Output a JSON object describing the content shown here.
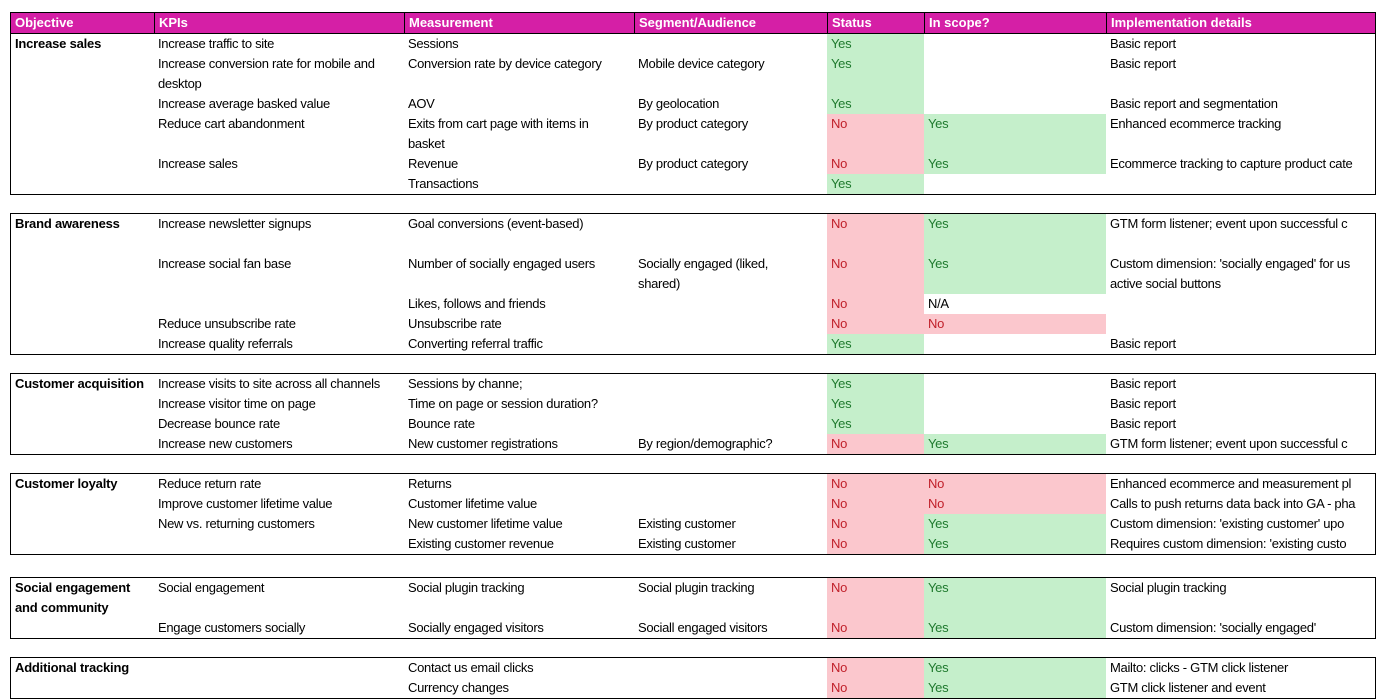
{
  "table": {
    "columns": [
      "Objective",
      "KPIs",
      "Measurement",
      "Segment/Audience",
      "Status",
      "In scope?",
      "Implementation details"
    ],
    "colors": {
      "header_bg": "#D51FA6",
      "header_text": "#FFFFFF",
      "yes_fill": "#C5EFCB",
      "yes_text": "#1F7A2E",
      "no_fill": "#FBC7CD",
      "no_text": "#C0202A",
      "border": "#000000"
    },
    "sections": [
      {
        "objective": "Increase sales",
        "rows": [
          {
            "kpi": "Increase traffic to site",
            "measurement": "Sessions",
            "segment": "",
            "status": "Yes",
            "in_scope": "",
            "implementation": "Basic report",
            "h": 1
          },
          {
            "kpi": "Increase conversion rate for mobile and\ndesktop",
            "measurement": "Conversion rate by device category",
            "segment": "Mobile device category",
            "status": "Yes",
            "in_scope": "",
            "implementation": "Basic report",
            "h": 2
          },
          {
            "kpi": "Increase average basked value",
            "measurement": "AOV",
            "segment": "By geolocation",
            "status": "Yes",
            "in_scope": "",
            "implementation": "Basic report and segmentation",
            "h": 1
          },
          {
            "kpi": "Reduce cart abandonment",
            "measurement": "Exits from cart page with items in\nbasket",
            "segment": "By product category",
            "status": "No",
            "in_scope": "Yes",
            "implementation": "Enhanced ecommerce tracking",
            "h": 2
          },
          {
            "kpi": "Increase sales",
            "measurement": "Revenue",
            "segment": "By product category",
            "status": "No",
            "in_scope": "Yes",
            "implementation": "Ecommerce tracking to capture product cate",
            "h": 1
          },
          {
            "kpi": "",
            "measurement": "Transactions",
            "segment": "",
            "status": "Yes",
            "in_scope": "",
            "implementation": "",
            "h": 1
          }
        ]
      },
      {
        "objective": "Brand awareness",
        "rows": [
          {
            "kpi": "Increase newsletter signups",
            "measurement": "Goal conversions (event-based)",
            "segment": "",
            "status": "No",
            "in_scope": "Yes",
            "implementation": "GTM form listener; event upon successful c",
            "h": 2
          },
          {
            "kpi": "Increase social fan base",
            "measurement": "Number of socially engaged users",
            "segment": "Socially engaged (liked,\nshared)",
            "status": "No",
            "in_scope": "Yes",
            "implementation": "Custom dimension: 'socially engaged' for us\nactive social buttons",
            "h": 2
          },
          {
            "kpi": "",
            "measurement": "Likes, follows and friends",
            "segment": "",
            "status": "No",
            "in_scope": "N/A",
            "implementation": "",
            "h": 1
          },
          {
            "kpi": "Reduce unsubscribe rate",
            "measurement": "Unsubscribe rate",
            "segment": "",
            "status": "No",
            "in_scope": "No",
            "implementation": "",
            "h": 1
          },
          {
            "kpi": "Increase quality referrals",
            "measurement": "Converting referral traffic",
            "segment": "",
            "status": "Yes",
            "in_scope": "",
            "implementation": "Basic report",
            "h": 1
          }
        ]
      },
      {
        "objective": "Customer acquisition",
        "rows": [
          {
            "kpi": "Increase visits to site across all channels",
            "measurement": "Sessions by channe;",
            "segment": "",
            "status": "Yes",
            "in_scope": "",
            "implementation": "Basic report",
            "h": 1
          },
          {
            "kpi": "Increase visitor time on page",
            "measurement": "Time on page or session duration?",
            "segment": "",
            "status": "Yes",
            "in_scope": "",
            "implementation": "Basic report",
            "h": 1
          },
          {
            "kpi": "Decrease bounce rate",
            "measurement": "Bounce rate",
            "segment": "",
            "status": "Yes",
            "in_scope": "",
            "implementation": "Basic report",
            "h": 1
          },
          {
            "kpi": "Increase new customers",
            "measurement": "New customer registrations",
            "segment": "By region/demographic?",
            "status": "No",
            "in_scope": "Yes",
            "implementation": "GTM form listener; event upon successful c",
            "h": 1
          }
        ]
      },
      {
        "objective": "Customer loyalty",
        "rows": [
          {
            "kpi": "Reduce return rate",
            "measurement": "Returns",
            "segment": "",
            "status": "No",
            "in_scope": "No",
            "implementation": "Enhanced ecommerce and measurement pl",
            "h": 1
          },
          {
            "kpi": "Improve customer lifetime value",
            "measurement": "Customer lifetime value",
            "segment": "",
            "status": "No",
            "in_scope": "No",
            "implementation": "Calls to push returns data back into GA - pha",
            "h": 1
          },
          {
            "kpi": "New vs. returning customers",
            "measurement": "New customer lifetime value",
            "segment": "Existing customer",
            "status": "No",
            "in_scope": "Yes",
            "implementation": "Custom dimension: 'existing customer' upo",
            "h": 1
          },
          {
            "kpi": "",
            "measurement": "Existing customer revenue",
            "segment": "Existing customer",
            "status": "No",
            "in_scope": "Yes",
            "implementation": "Requires custom dimension: 'existing custo",
            "h": 1
          }
        ]
      },
      {
        "objective": "Social engagement\nand community",
        "rows": [
          {
            "kpi": "Social engagement",
            "measurement": "Social plugin tracking",
            "segment": "Social plugin tracking",
            "status": "No",
            "in_scope": "Yes",
            "implementation": "Social plugin tracking",
            "h": 2
          },
          {
            "kpi": "Engage customers socially",
            "measurement": "Socially engaged visitors",
            "segment": "Sociall engaged visitors",
            "status": "No",
            "in_scope": "Yes",
            "implementation": "Custom dimension: 'socially engaged'",
            "h": 1
          }
        ]
      },
      {
        "objective": "Additional tracking",
        "rows": [
          {
            "kpi": "",
            "measurement": "Contact us email clicks",
            "segment": "",
            "status": "No",
            "in_scope": "Yes",
            "implementation": "Mailto: clicks - GTM click listener",
            "h": 1
          },
          {
            "kpi": "",
            "measurement": "Currency changes",
            "segment": "",
            "status": "No",
            "in_scope": "Yes",
            "implementation": "GTM click listener and event",
            "h": 1
          }
        ]
      }
    ]
  }
}
